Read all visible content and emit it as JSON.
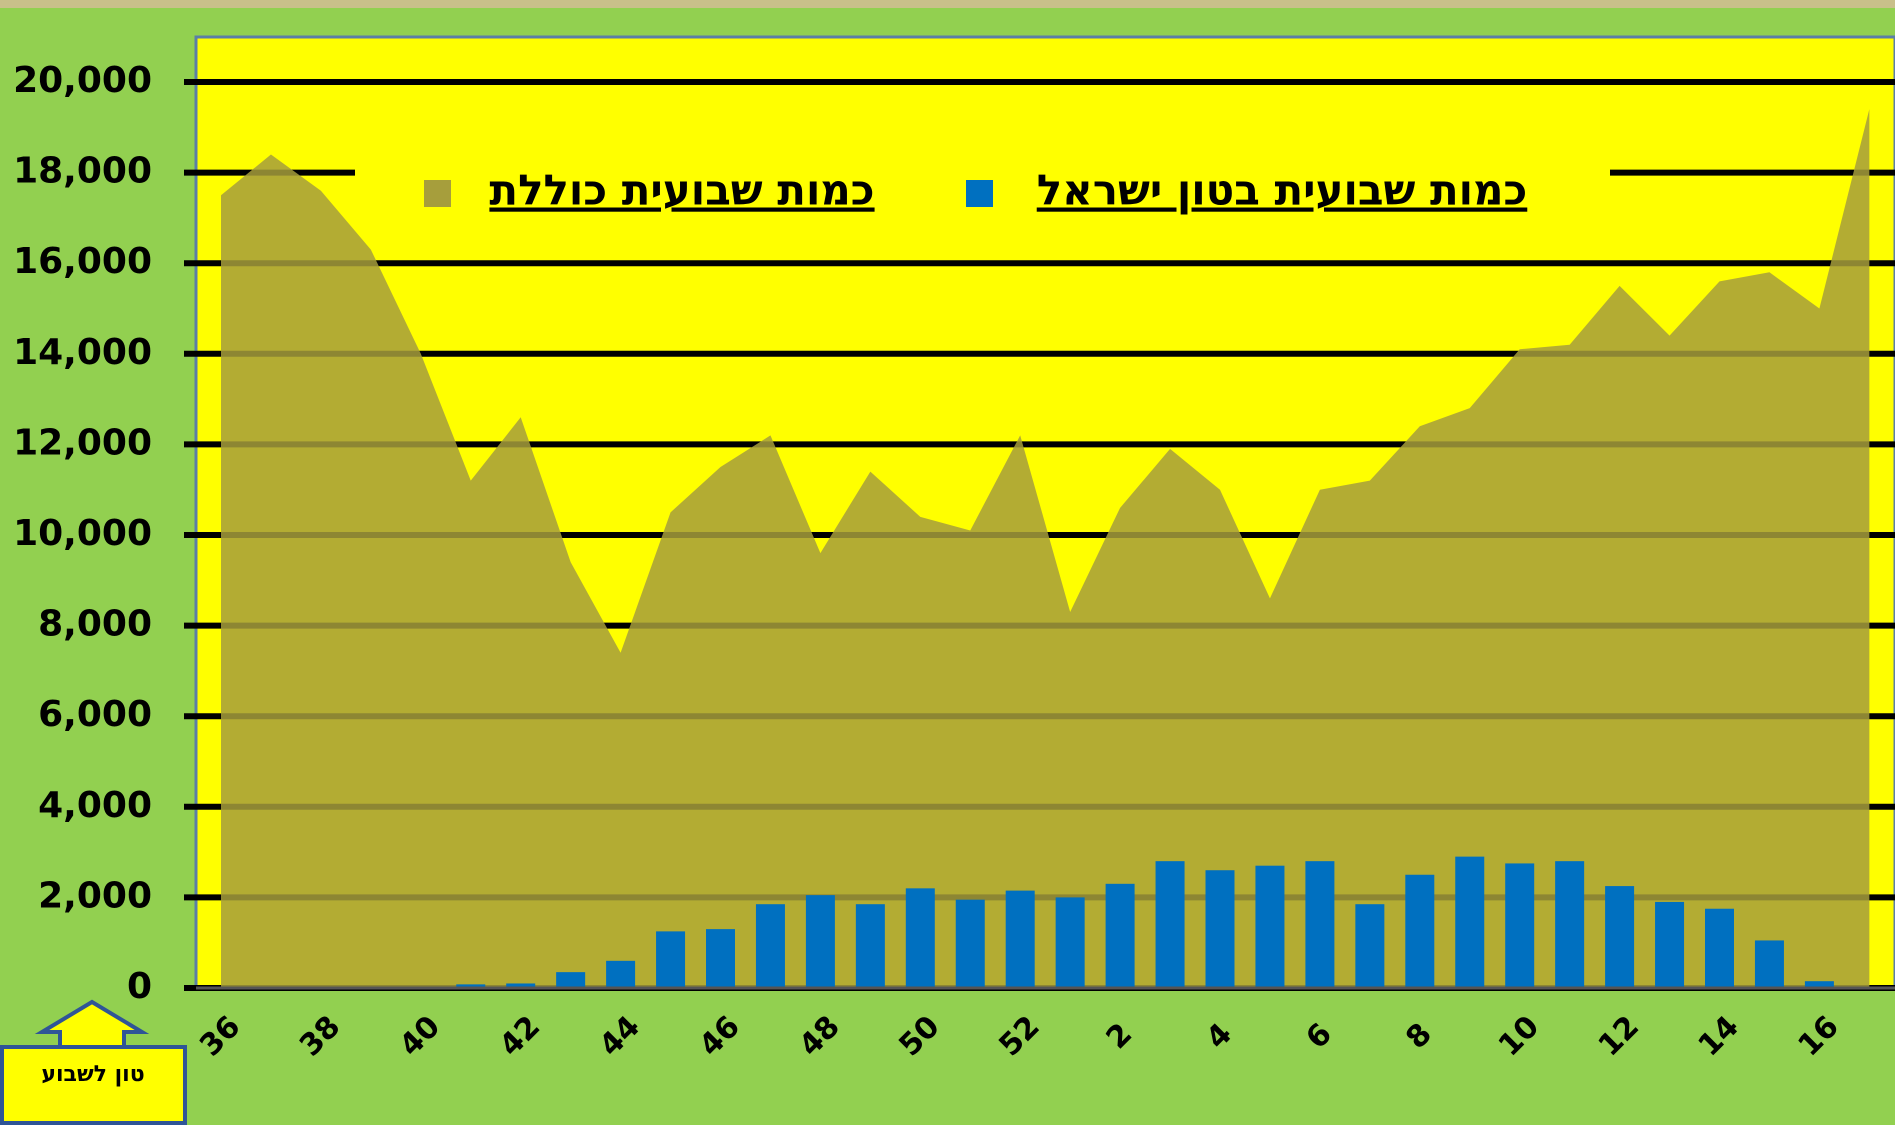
{
  "chart_data": {
    "type": "bar_area",
    "categories": [
      "36",
      null,
      "38",
      null,
      "40",
      null,
      "42",
      null,
      "44",
      null,
      "46",
      null,
      "48",
      null,
      "50",
      null,
      "52",
      null,
      "2",
      null,
      "4",
      null,
      "6",
      null,
      "8",
      null,
      "10",
      null,
      "12",
      null,
      "14",
      null,
      "16",
      null
    ],
    "series": [
      {
        "name": "כמות שבועית כוללת",
        "color": "#a69e3c",
        "kind": "area",
        "values": [
          17500,
          18400,
          17600,
          16300,
          14000,
          11200,
          12600,
          9400,
          7400,
          10500,
          11500,
          12200,
          9600,
          11400,
          10400,
          10100,
          12200,
          8300,
          10600,
          11900,
          11000,
          8600,
          11000,
          11200,
          12400,
          12800,
          14100,
          14200,
          15500,
          14400,
          15600,
          15800,
          15000,
          19400
        ]
      },
      {
        "name": "כמות שבועית בטון ישראל",
        "color": "#0070c0",
        "kind": "bar",
        "values": [
          0,
          0,
          0,
          0,
          0,
          80,
          100,
          350,
          600,
          1250,
          1300,
          1850,
          2050,
          1850,
          2200,
          1950,
          2150,
          2000,
          2300,
          2800,
          2600,
          2700,
          2800,
          1850,
          2500,
          2900,
          2750,
          2800,
          2250,
          1900,
          1750,
          1050,
          150,
          0
        ]
      }
    ],
    "ylim": [
      0,
      20000
    ],
    "yticks": [
      0,
      {
        "value": 2000,
        "label": "2,000"
      },
      {
        "value": 4000,
        "label": "4,000"
      },
      {
        "value": 6000,
        "label": "6,000"
      },
      {
        "value": 8000,
        "label": "8,000"
      },
      {
        "value": 10000,
        "label": "10,000"
      },
      {
        "value": 12000,
        "label": "12,000"
      },
      {
        "value": 14000,
        "label": "14,000"
      },
      {
        "value": 16000,
        "label": "16,000"
      },
      {
        "value": 18000,
        "label": "18,000"
      },
      {
        "value": 20000,
        "label": "20,000"
      }
    ],
    "grid": true,
    "y_unit_note": "טון לשבוע"
  }
}
